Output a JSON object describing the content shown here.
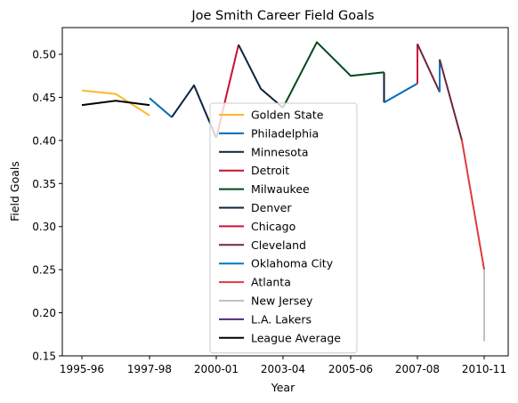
{
  "chart_data": {
    "type": "line",
    "title": "Joe Smith  Career Field Goals",
    "xlabel": "Year",
    "ylabel": "Field Goals",
    "xlim": [
      1995.5,
      2011.0
    ],
    "ylim": [
      0.15,
      0.53
    ],
    "x_ticks": [
      {
        "x": 1995,
        "label": "1995-96"
      },
      {
        "x": 1997,
        "label": "1997-98"
      },
      {
        "x": 2000,
        "label": "2000-01"
      },
      {
        "x": 2003,
        "label": "2003-04"
      },
      {
        "x": 2005,
        "label": "2005-06"
      },
      {
        "x": 2007,
        "label": "2007-08"
      },
      {
        "x": 2010,
        "label": "2010-11"
      }
    ],
    "y_ticks": [
      0.15,
      0.2,
      0.25,
      0.3,
      0.35,
      0.4,
      0.45,
      0.5
    ],
    "legend_position": "center",
    "grid": false,
    "series": [
      {
        "name": "Golden State",
        "color": "#FDB927",
        "points": [
          [
            1995,
            0.458
          ],
          [
            1996,
            0.454
          ],
          [
            1997,
            0.429
          ]
        ]
      },
      {
        "name": "Philadelphia",
        "color": "#006BB6",
        "points": [
          [
            1997,
            0.449
          ],
          [
            1998,
            0.427
          ]
        ]
      },
      {
        "name": "Minnesota",
        "color": "#0C2340",
        "points": [
          [
            1998,
            0.427
          ],
          [
            1999,
            0.464
          ],
          [
            2000,
            0.403
          ]
        ]
      },
      {
        "name": "Detroit",
        "color": "#C8102E",
        "points": [
          [
            2000,
            0.403
          ],
          [
            2001,
            0.511
          ]
        ]
      },
      {
        "name": "Minnesota",
        "color": "#0C2340",
        "points": [
          [
            2001,
            0.511
          ],
          [
            2002,
            0.46
          ],
          [
            2003,
            0.438
          ]
        ]
      },
      {
        "name": "Milwaukee",
        "color": "#00471B",
        "points": [
          [
            2003,
            0.438
          ],
          [
            2004,
            0.514
          ],
          [
            2005,
            0.475
          ],
          [
            2006,
            0.479
          ]
        ]
      },
      {
        "name": "Denver",
        "color": "#0E2240",
        "points": [
          [
            2006,
            0.479
          ],
          [
            2006,
            0.444
          ]
        ]
      },
      {
        "name": "Philadelphia",
        "color": "#006BB6",
        "points": [
          [
            2006,
            0.444
          ],
          [
            2007,
            0.466
          ]
        ]
      },
      {
        "name": "Chicago",
        "color": "#CE1141",
        "points": [
          [
            2007,
            0.466
          ],
          [
            2007,
            0.512
          ]
        ]
      },
      {
        "name": "Cleveland",
        "color": "#6F263D",
        "points": [
          [
            2007,
            0.512
          ],
          [
            2008,
            0.456
          ]
        ]
      },
      {
        "name": "Oklahoma City",
        "color": "#007AC1",
        "points": [
          [
            2008,
            0.456
          ],
          [
            2008,
            0.494
          ]
        ]
      },
      {
        "name": "Cleveland",
        "color": "#6F263D",
        "points": [
          [
            2008,
            0.494
          ],
          [
            2009,
            0.4
          ]
        ]
      },
      {
        "name": "Atlanta",
        "color": "#E03A3E",
        "points": [
          [
            2009,
            0.4
          ],
          [
            2010,
            0.25
          ]
        ]
      },
      {
        "name": "New Jersey",
        "color": "#BEC0C2",
        "points": [
          [
            2010,
            0.25
          ],
          [
            2010,
            0.167
          ]
        ]
      },
      {
        "name": "L.A. Lakers",
        "color": "#552583",
        "points": []
      },
      {
        "name": "League Average",
        "color": "#000000",
        "points": [
          [
            1995,
            0.441
          ],
          [
            1996,
            0.446
          ],
          [
            1997,
            0.441
          ]
        ]
      }
    ],
    "legend": [
      {
        "label": "Golden State",
        "color": "#FDB927"
      },
      {
        "label": "Philadelphia",
        "color": "#006BB6"
      },
      {
        "label": "Minnesota",
        "color": "#0C2340"
      },
      {
        "label": "Detroit",
        "color": "#C8102E"
      },
      {
        "label": "Milwaukee",
        "color": "#00471B"
      },
      {
        "label": "Denver",
        "color": "#0E2240"
      },
      {
        "label": "Chicago",
        "color": "#CE1141"
      },
      {
        "label": "Cleveland",
        "color": "#6F263D"
      },
      {
        "label": "Oklahoma City",
        "color": "#007AC1"
      },
      {
        "label": "Atlanta",
        "color": "#E03A3E"
      },
      {
        "label": "New Jersey",
        "color": "#BEC0C2"
      },
      {
        "label": "L.A. Lakers",
        "color": "#552583"
      },
      {
        "label": "League Average",
        "color": "#000000"
      }
    ]
  }
}
